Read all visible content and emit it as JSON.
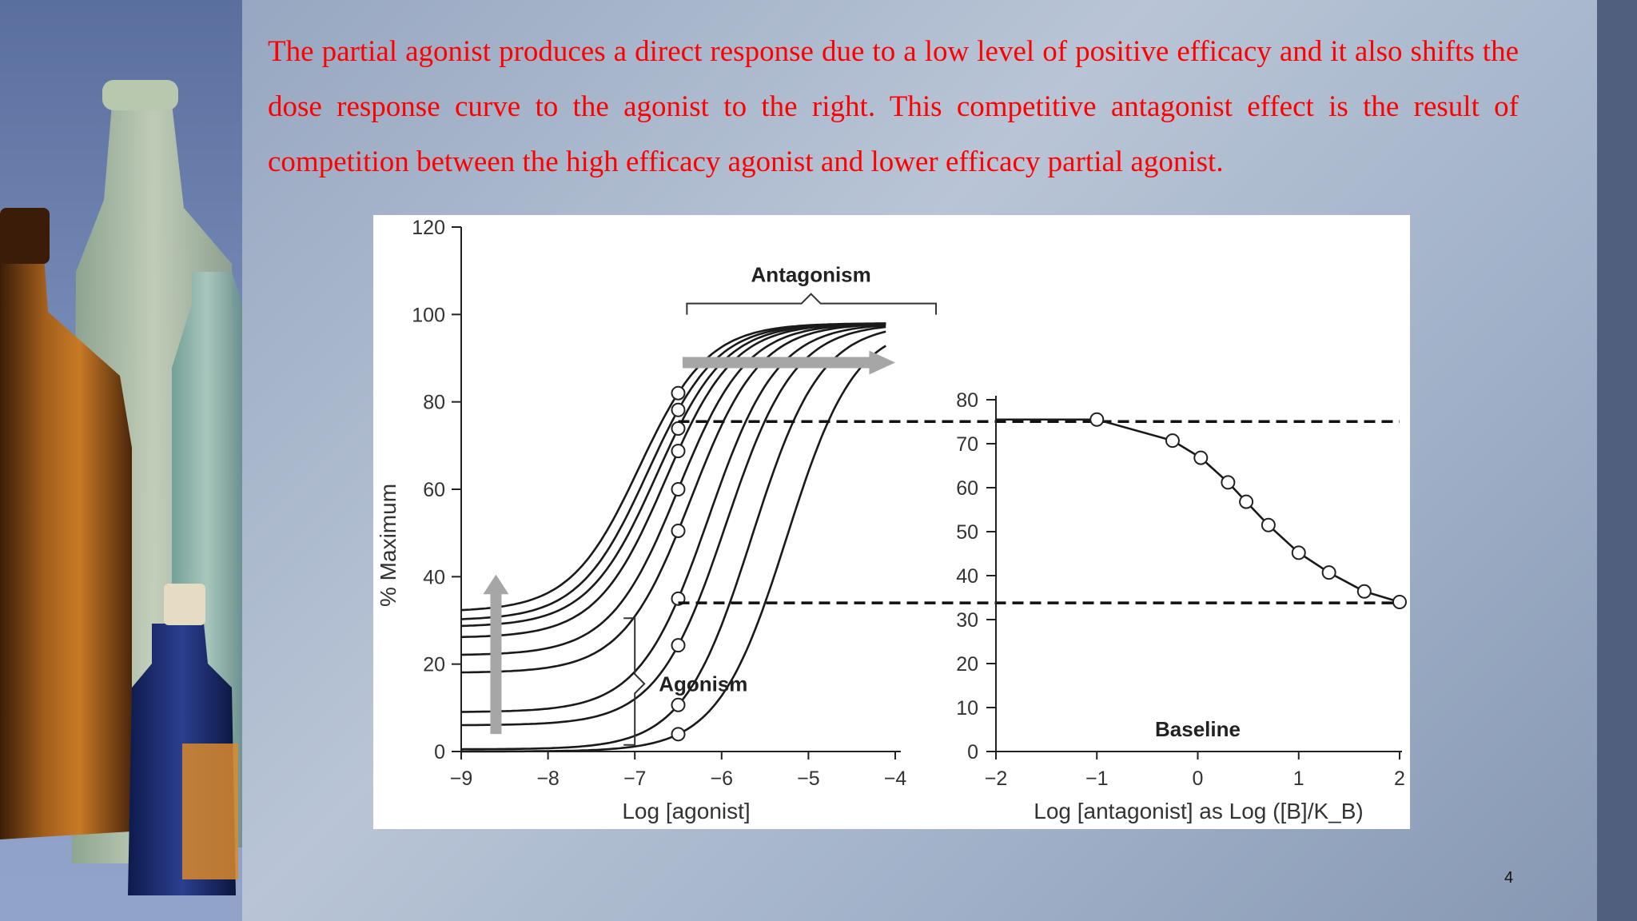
{
  "slide": {
    "text": "The partial agonist produces a direct response due to a low level of positive efficacy and it also shifts the dose response curve to the agonist to the right. This competitive antagonist effect is the result of competition between the high efficacy agonist and lower efficacy partial agonist.",
    "page_number": "4"
  },
  "colors": {
    "text": "#ff0000",
    "curve": "#1a1a1a",
    "arrow": "#a6a6a6",
    "chart_bg": "#ffffff"
  },
  "chart_data": [
    {
      "type": "line",
      "xlabel": "Log [agonist]",
      "ylabel": "% Maximum",
      "x_ticks": [
        "−9",
        "−8",
        "−7",
        "−6",
        "−5",
        "−4"
      ],
      "y_ticks": [
        "0",
        "20",
        "40",
        "60",
        "80",
        "100",
        "120"
      ],
      "xlim": [
        -9,
        -4
      ],
      "ylim": [
        0,
        120
      ],
      "annotations": [
        "Antagonism",
        "Agonism"
      ],
      "grid": false,
      "common_intersection": {
        "x": -7.3,
        "y": 32
      },
      "series": [
        {
          "baseline": 32,
          "log_ec50": -6.95,
          "max": 98
        },
        {
          "baseline": 30,
          "log_ec50": -6.85,
          "max": 98
        },
        {
          "baseline": 28.5,
          "log_ec50": -6.75,
          "max": 98
        },
        {
          "baseline": 26,
          "log_ec50": -6.65,
          "max": 98
        },
        {
          "baseline": 22,
          "log_ec50": -6.5,
          "max": 98
        },
        {
          "baseline": 18,
          "log_ec50": -6.35,
          "max": 98
        },
        {
          "baseline": 9,
          "log_ec50": -6.15,
          "max": 98
        },
        {
          "baseline": 6,
          "log_ec50": -5.95,
          "max": 98
        },
        {
          "baseline": 0.5,
          "log_ec50": -5.65,
          "max": 98
        },
        {
          "baseline": 0,
          "log_ec50": -5.25,
          "max": 98
        }
      ],
      "marker_x": -6.5,
      "reference_lines_y": [
        75.5,
        34
      ]
    },
    {
      "type": "scatter",
      "xlabel": "Log [antagonist] as Log ([B]/K_B)",
      "x_ticks": [
        "−2",
        "−1",
        "0",
        "1",
        "2"
      ],
      "y_ticks": [
        "0",
        "10",
        "20",
        "30",
        "40",
        "50",
        "60",
        "70",
        "80"
      ],
      "xlim": [
        -2,
        2
      ],
      "ylim": [
        0,
        80
      ],
      "annotations": [
        "Baseline"
      ],
      "grid": false,
      "points": [
        {
          "x": -1.0,
          "y": 75.5
        },
        {
          "x": -0.25,
          "y": 70.7
        },
        {
          "x": 0.03,
          "y": 66.8
        },
        {
          "x": 0.3,
          "y": 61.2
        },
        {
          "x": 0.48,
          "y": 56.8
        },
        {
          "x": 0.7,
          "y": 51.5
        },
        {
          "x": 1.0,
          "y": 45.2
        },
        {
          "x": 1.3,
          "y": 40.7
        },
        {
          "x": 1.65,
          "y": 36.4
        },
        {
          "x": 2.0,
          "y": 34.0
        }
      ]
    }
  ]
}
